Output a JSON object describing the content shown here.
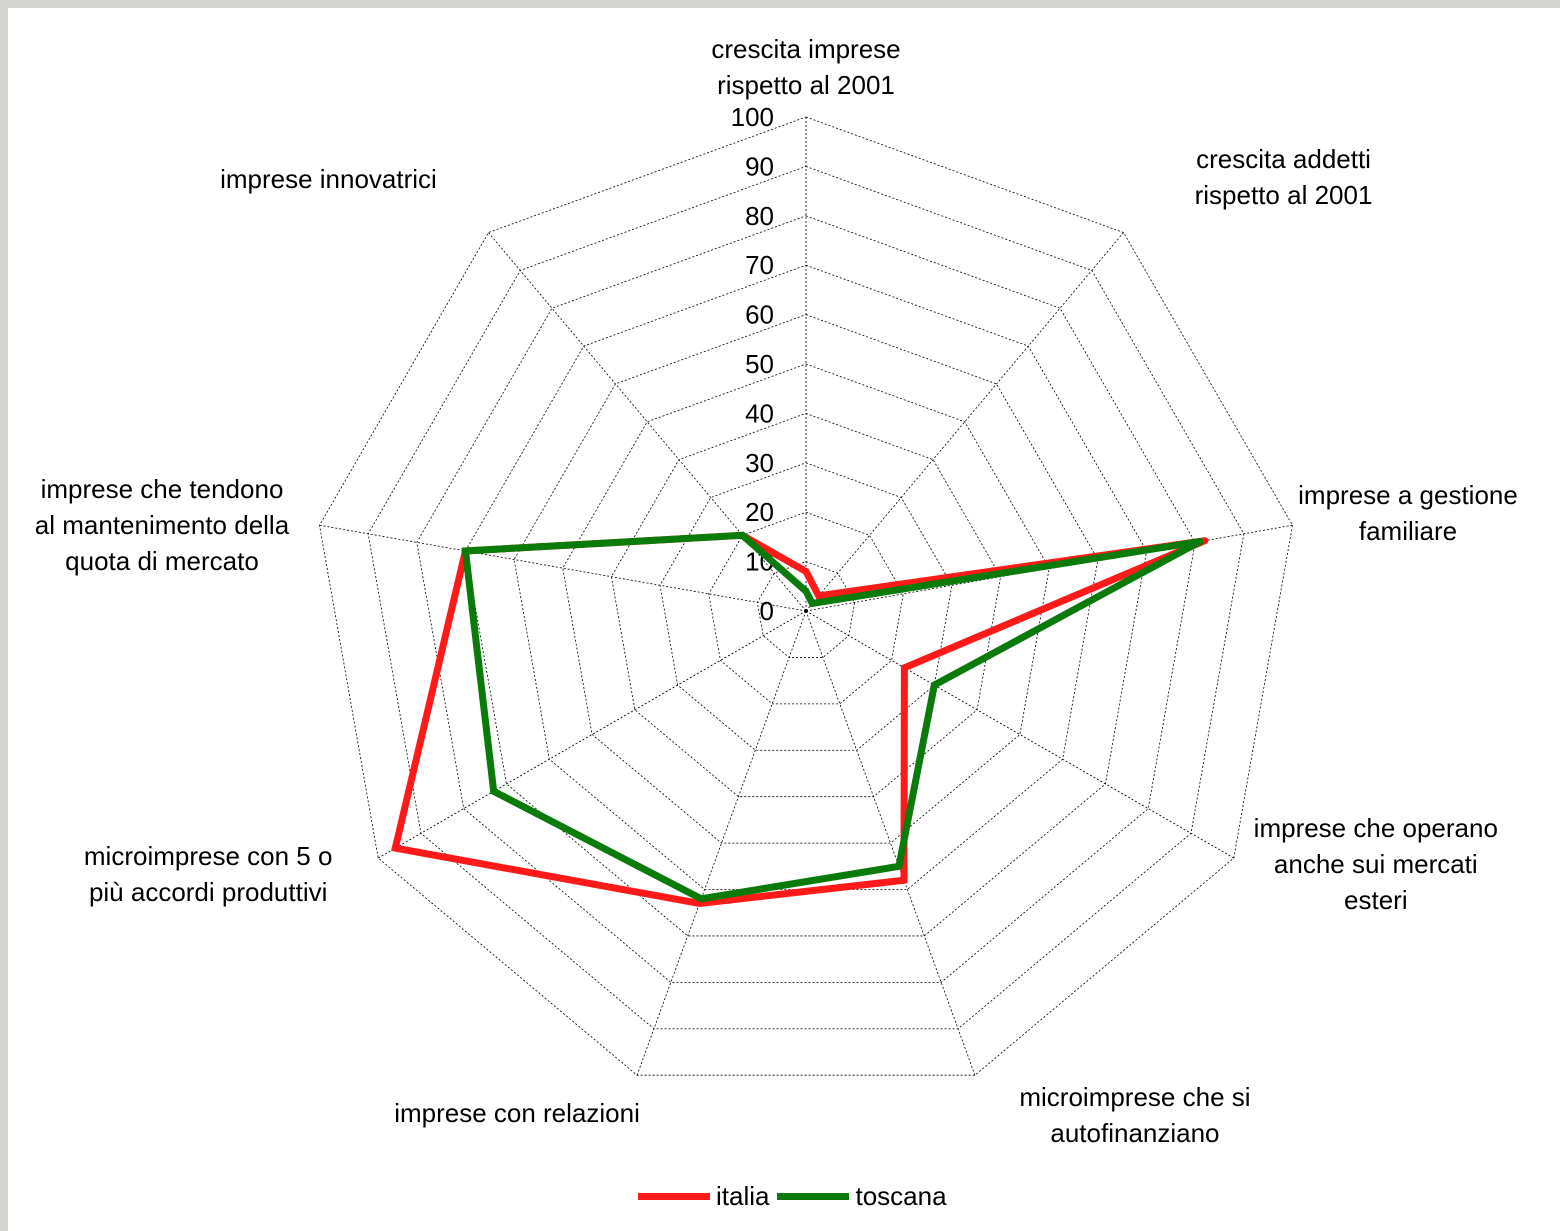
{
  "chart_data": {
    "type": "radar",
    "axes": [
      "crescita imprese\nrispetto al 2001",
      "crescita addetti\nrispetto al 2001",
      "imprese a gestione\nfamiliare",
      "imprese che operano\nanche sui mercati\nesteri",
      "microimprese che si\nautofinanziano",
      "imprese con relazioni",
      "microimprese con 5 o\npiù accordi produttivi",
      "imprese che tendono\nal mantenimento della\nquota di mercato",
      "imprese innovatrici"
    ],
    "rlim": [
      0,
      100
    ],
    "ticks": [
      "0",
      "10",
      "20",
      "30",
      "40",
      "50",
      "60",
      "70",
      "80",
      "90",
      "100"
    ],
    "grid": true,
    "legend_position": "bottom",
    "series": [
      {
        "name": "italia",
        "color": "#ff1a1a",
        "values": [
          8,
          4,
          82,
          23,
          58,
          63,
          96,
          70,
          20
        ]
      },
      {
        "name": "toscana",
        "color": "#0a7a0a",
        "values": [
          4,
          2,
          81,
          30,
          55,
          62,
          73,
          70,
          20
        ]
      }
    ]
  }
}
